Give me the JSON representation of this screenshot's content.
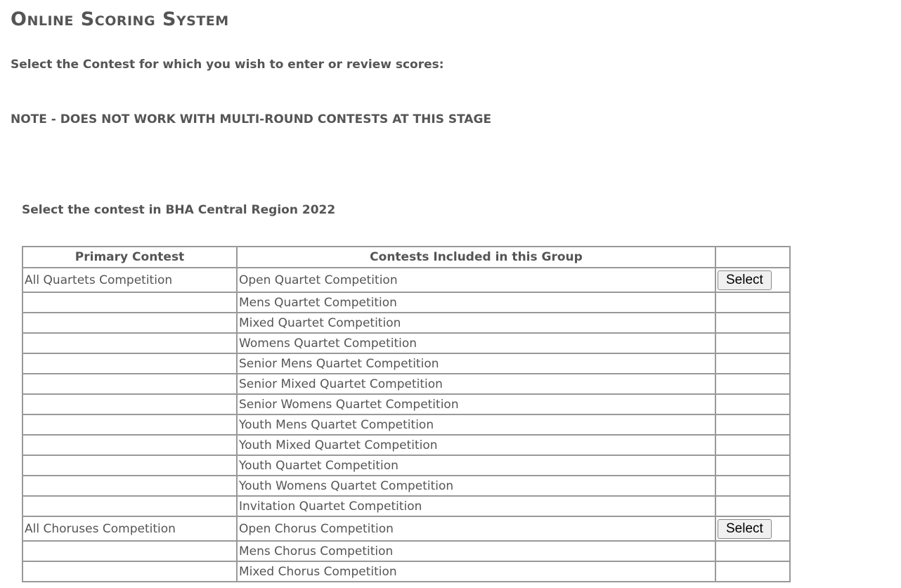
{
  "header": {
    "title": "Online Scoring System",
    "instruction": "Select the Contest for which you wish to enter or review scores:",
    "note": "NOTE - DOES NOT WORK WITH MULTI-ROUND CONTESTS AT THIS STAGE"
  },
  "section": {
    "title": "Select the contest in BHA Central Region 2022"
  },
  "table": {
    "columns": [
      "Primary Contest",
      "Contests Included in this Group"
    ],
    "groups": [
      {
        "primary": "All Quartets Competition",
        "action": "Select",
        "contests": [
          "Open Quartet Competition",
          "Mens Quartet Competition",
          "Mixed Quartet Competition",
          "Womens Quartet Competition",
          "Senior Mens Quartet Competition",
          "Senior Mixed Quartet Competition",
          "Senior Womens Quartet Competition",
          "Youth Mens Quartet Competition",
          "Youth Mixed Quartet Competition",
          "Youth Quartet Competition",
          "Youth Womens Quartet Competition",
          "Invitation Quartet Competition"
        ]
      },
      {
        "primary": "All Choruses Competition",
        "action": "Select",
        "contests": [
          "Open Chorus Competition",
          "Mens Chorus Competition",
          "Mixed Chorus Competition"
        ]
      }
    ]
  }
}
